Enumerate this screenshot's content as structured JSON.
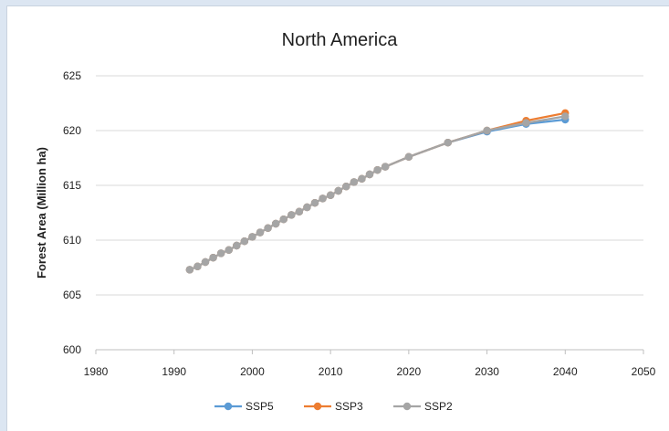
{
  "chart_data": {
    "type": "line",
    "title": "North America",
    "xlabel": "",
    "ylabel": "Forest Area (Million ha)",
    "xlim": [
      1980,
      2050
    ],
    "ylim": [
      600,
      625
    ],
    "xticks": [
      1980,
      1990,
      2000,
      2010,
      2020,
      2030,
      2040,
      2050
    ],
    "yticks": [
      600,
      605,
      610,
      615,
      620,
      625
    ],
    "grid": "horizontal",
    "legend": "bottom",
    "series": [
      {
        "name": "SSP5",
        "color": "#5b9bd5",
        "points": [
          [
            1992,
            607.3
          ],
          [
            1993,
            607.6
          ],
          [
            1994,
            608.0
          ],
          [
            1995,
            608.4
          ],
          [
            1996,
            608.8
          ],
          [
            1997,
            609.1
          ],
          [
            1998,
            609.5
          ],
          [
            1999,
            609.9
          ],
          [
            2000,
            610.3
          ],
          [
            2001,
            610.7
          ],
          [
            2002,
            611.1
          ],
          [
            2003,
            611.5
          ],
          [
            2004,
            611.9
          ],
          [
            2005,
            612.3
          ],
          [
            2006,
            612.6
          ],
          [
            2007,
            613.0
          ],
          [
            2008,
            613.4
          ],
          [
            2009,
            613.8
          ],
          [
            2010,
            614.1
          ],
          [
            2011,
            614.5
          ],
          [
            2012,
            614.9
          ],
          [
            2013,
            615.3
          ],
          [
            2014,
            615.6
          ],
          [
            2015,
            616.0
          ],
          [
            2016,
            616.4
          ],
          [
            2017,
            616.7
          ],
          [
            2020,
            617.6
          ],
          [
            2025,
            618.9
          ],
          [
            2030,
            619.9
          ],
          [
            2035,
            620.6
          ],
          [
            2040,
            621.0
          ]
        ]
      },
      {
        "name": "SSP3",
        "color": "#ed7d31",
        "points": [
          [
            1992,
            607.3
          ],
          [
            1993,
            607.6
          ],
          [
            1994,
            608.0
          ],
          [
            1995,
            608.4
          ],
          [
            1996,
            608.8
          ],
          [
            1997,
            609.1
          ],
          [
            1998,
            609.5
          ],
          [
            1999,
            609.9
          ],
          [
            2000,
            610.3
          ],
          [
            2001,
            610.7
          ],
          [
            2002,
            611.1
          ],
          [
            2003,
            611.5
          ],
          [
            2004,
            611.9
          ],
          [
            2005,
            612.3
          ],
          [
            2006,
            612.6
          ],
          [
            2007,
            613.0
          ],
          [
            2008,
            613.4
          ],
          [
            2009,
            613.8
          ],
          [
            2010,
            614.1
          ],
          [
            2011,
            614.5
          ],
          [
            2012,
            614.9
          ],
          [
            2013,
            615.3
          ],
          [
            2014,
            615.6
          ],
          [
            2015,
            616.0
          ],
          [
            2016,
            616.4
          ],
          [
            2017,
            616.7
          ],
          [
            2020,
            617.6
          ],
          [
            2025,
            618.9
          ],
          [
            2030,
            620.0
          ],
          [
            2035,
            620.9
          ],
          [
            2040,
            621.6
          ]
        ]
      },
      {
        "name": "SSP2",
        "color": "#a5a5a5",
        "points": [
          [
            1992,
            607.3
          ],
          [
            1993,
            607.6
          ],
          [
            1994,
            608.0
          ],
          [
            1995,
            608.4
          ],
          [
            1996,
            608.8
          ],
          [
            1997,
            609.1
          ],
          [
            1998,
            609.5
          ],
          [
            1999,
            609.9
          ],
          [
            2000,
            610.3
          ],
          [
            2001,
            610.7
          ],
          [
            2002,
            611.1
          ],
          [
            2003,
            611.5
          ],
          [
            2004,
            611.9
          ],
          [
            2005,
            612.3
          ],
          [
            2006,
            612.6
          ],
          [
            2007,
            613.0
          ],
          [
            2008,
            613.4
          ],
          [
            2009,
            613.8
          ],
          [
            2010,
            614.1
          ],
          [
            2011,
            614.5
          ],
          [
            2012,
            614.9
          ],
          [
            2013,
            615.3
          ],
          [
            2014,
            615.6
          ],
          [
            2015,
            616.0
          ],
          [
            2016,
            616.4
          ],
          [
            2017,
            616.7
          ],
          [
            2020,
            617.6
          ],
          [
            2025,
            618.9
          ],
          [
            2030,
            620.0
          ],
          [
            2035,
            620.7
          ],
          [
            2040,
            621.3
          ]
        ]
      }
    ]
  }
}
